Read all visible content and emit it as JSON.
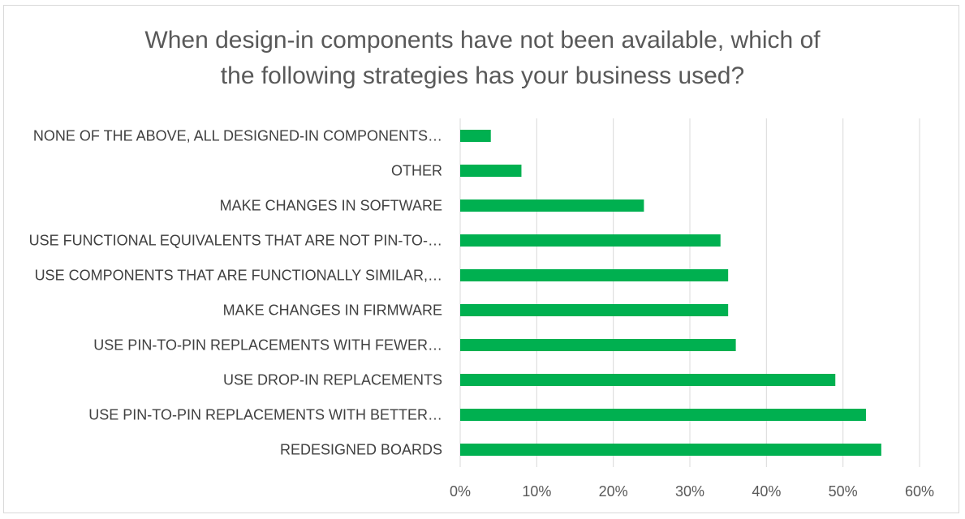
{
  "chart_data": {
    "type": "bar",
    "orientation": "horizontal",
    "title_line1": "When design-in components have not been available, which of",
    "title_line2": "the following strategies has your business used?",
    "categories": [
      "NONE OF THE ABOVE, ALL DESIGNED-IN COMPONENTS…",
      "OTHER",
      "MAKE CHANGES IN SOFTWARE",
      "USE FUNCTIONAL EQUIVALENTS THAT ARE NOT PIN-TO-…",
      "USE COMPONENTS THAT ARE FUNCTIONALLY SIMILAR,…",
      "MAKE CHANGES IN FIRMWARE",
      "USE PIN-TO-PIN REPLACEMENTS WITH FEWER…",
      "USE DROP-IN REPLACEMENTS",
      "USE PIN-TO-PIN REPLACEMENTS WITH BETTER…",
      "REDESIGNED BOARDS"
    ],
    "values": [
      4,
      8,
      24,
      34,
      35,
      35,
      36,
      49,
      53,
      55
    ],
    "xlim": [
      0,
      60
    ],
    "x_ticks": [
      0,
      10,
      20,
      30,
      40,
      50,
      60
    ],
    "x_tick_labels": [
      "0%",
      "10%",
      "20%",
      "30%",
      "40%",
      "50%",
      "60%"
    ],
    "grid": "vertical",
    "bar_color": "#00b050",
    "grid_color": "#d9d9d9"
  }
}
